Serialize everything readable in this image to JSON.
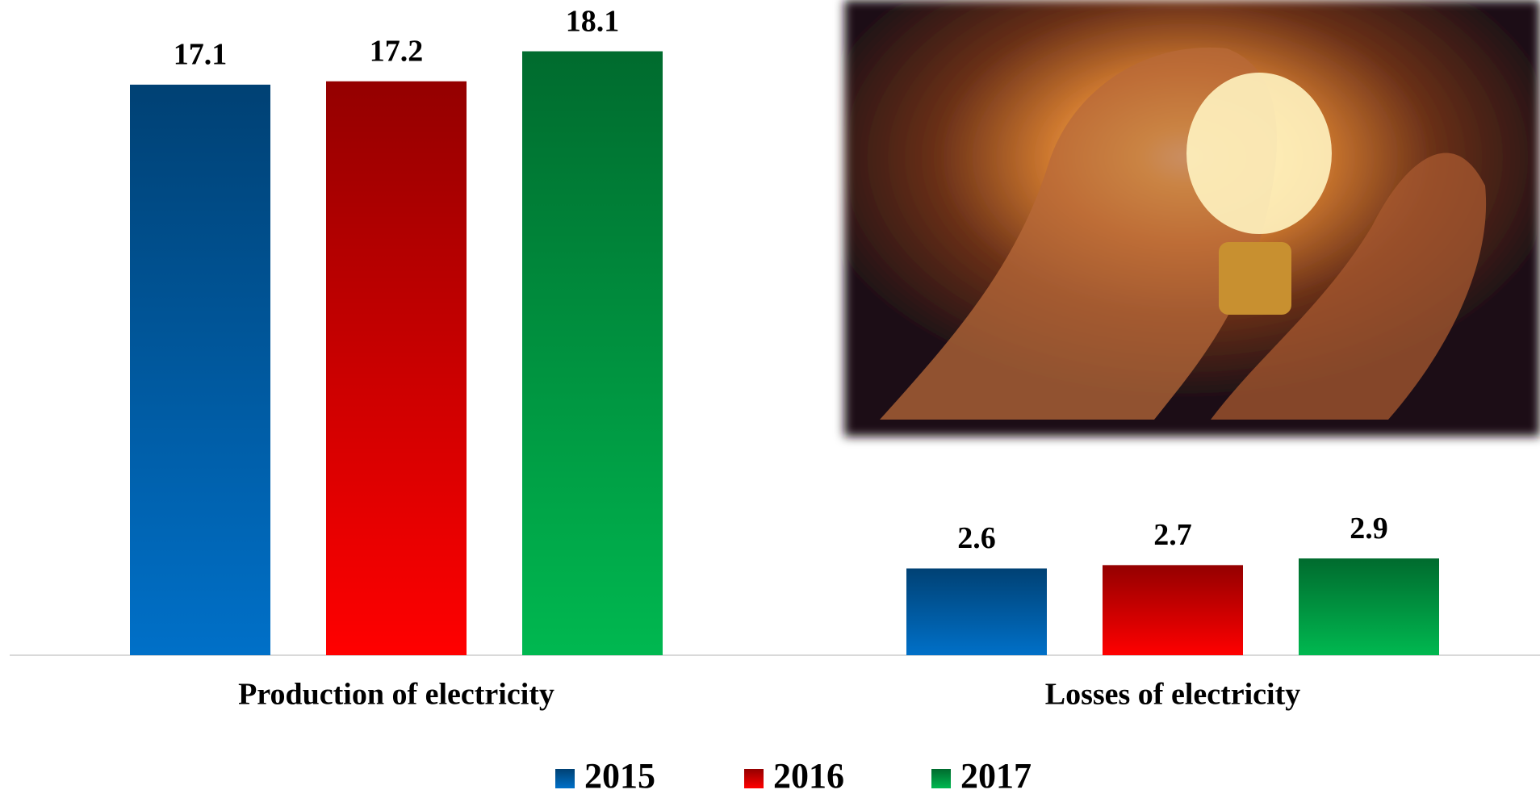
{
  "chart_data": {
    "type": "bar",
    "categories": [
      "Production of electricity",
      "Losses of electricity"
    ],
    "series": [
      {
        "name": "2015",
        "color": "#0070c8",
        "values": [
          17.1,
          2.6
        ]
      },
      {
        "name": "2016",
        "color": "#ff0000",
        "values": [
          17.2,
          2.7
        ]
      },
      {
        "name": "2017",
        "color": "#00b850",
        "values": [
          18.1,
          2.9
        ]
      }
    ],
    "ylim": [
      0,
      20
    ]
  }
}
